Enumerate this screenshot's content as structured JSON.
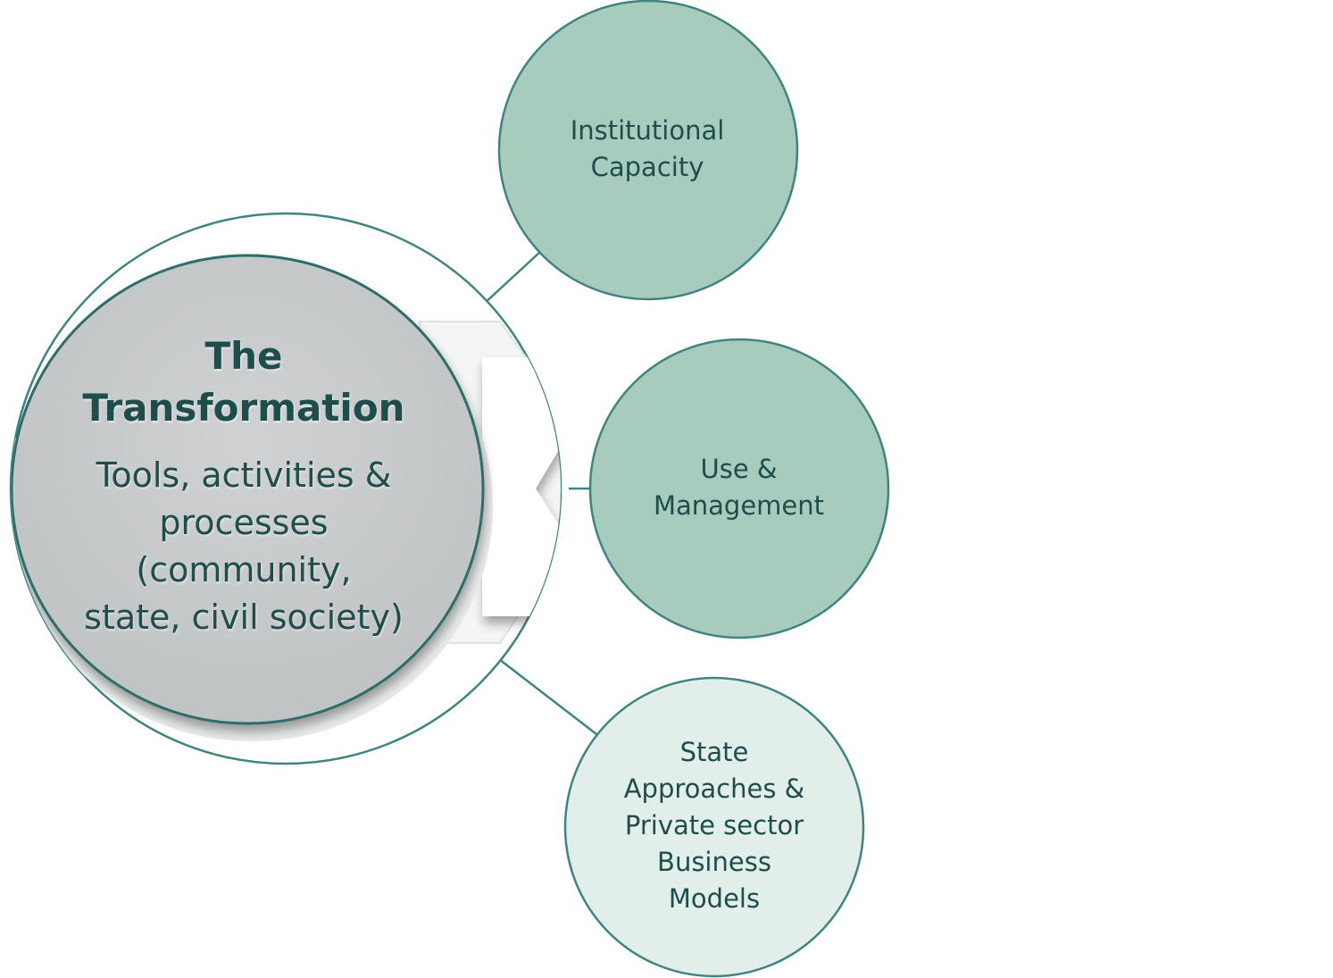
{
  "center": {
    "title_line1": "The",
    "title_line2": "Transformation",
    "subtitle_lines": [
      "Tools, activities &",
      "processes",
      "(community,",
      "state, civil society)"
    ]
  },
  "nodes": [
    {
      "lines": [
        "Institutional",
        "Capacity"
      ],
      "fill": "#a7cbbc"
    },
    {
      "lines": [
        "Use &",
        "Management"
      ],
      "fill": "#a7cbbc"
    },
    {
      "lines": [
        "State",
        "Approaches &",
        "Private sector",
        "Business",
        "Models"
      ],
      "fill": "#e1eee9"
    }
  ],
  "colors": {
    "outline": "#3f8481",
    "center_fill": "#c8cacb",
    "text": "#1e4d4c"
  }
}
